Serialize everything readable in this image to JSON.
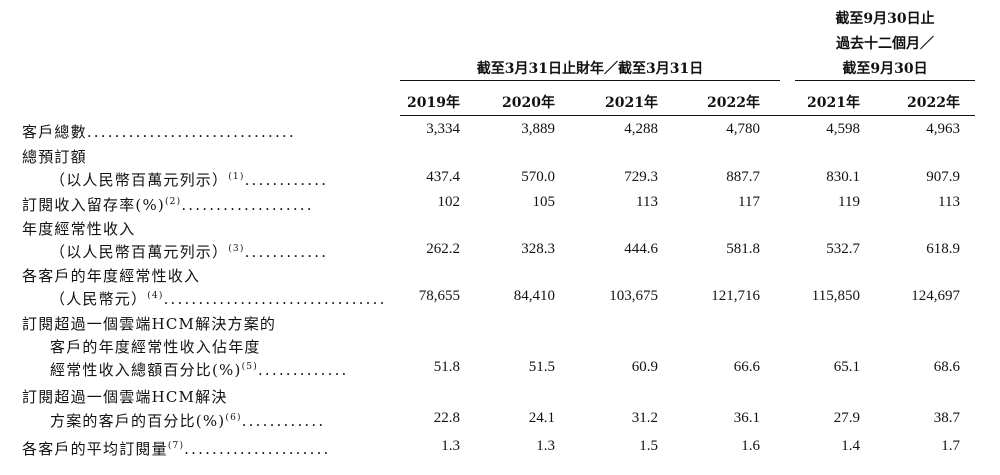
{
  "header": {
    "group_left": "截至3月31日止財年／截至3月31日",
    "group_right_line1": "截至9月30日止",
    "group_right_line2": "過去十二個月／",
    "group_right_line3": "截至9月30日"
  },
  "years": [
    "2019年",
    "2020年",
    "2021年",
    "2022年",
    "2021年",
    "2022年"
  ],
  "rows": [
    {
      "label_lines": [
        "客戶總數"
      ],
      "sup": "",
      "values": [
        "3,334",
        "3,889",
        "4,288",
        "4,780",
        "4,598",
        "4,963"
      ]
    },
    {
      "label_lines": [
        "總預訂額",
        "（以人民幣百萬元列示）"
      ],
      "sup": "(1)",
      "values": [
        "437.4",
        "570.0",
        "729.3",
        "887.7",
        "830.1",
        "907.9"
      ]
    },
    {
      "label_lines": [
        "訂閱收入留存率(%)"
      ],
      "sup": "(2)",
      "values": [
        "102",
        "105",
        "113",
        "117",
        "119",
        "113"
      ]
    },
    {
      "label_lines": [
        "年度經常性收入",
        "（以人民幣百萬元列示）"
      ],
      "sup": "(3)",
      "values": [
        "262.2",
        "328.3",
        "444.6",
        "581.8",
        "532.7",
        "618.9"
      ]
    },
    {
      "label_lines": [
        "各客戶的年度經常性收入",
        "（人民幣元）"
      ],
      "sup": "(4)",
      "values": [
        "78,655",
        "84,410",
        "103,675",
        "121,716",
        "115,850",
        "124,697"
      ]
    },
    {
      "label_lines": [
        "訂閱超過一個雲端HCM解決方案的",
        "客戶的年度經常性收入佔年度",
        "經常性收入總額百分比(%)"
      ],
      "sup": "(5)",
      "values": [
        "51.8",
        "51.5",
        "60.9",
        "66.6",
        "65.1",
        "68.6"
      ]
    },
    {
      "label_lines": [
        "訂閱超過一個雲端HCM解決",
        "方案的客戶的百分比(%)"
      ],
      "sup": "(6)",
      "values": [
        "22.8",
        "24.1",
        "31.2",
        "36.1",
        "27.9",
        "38.7"
      ]
    },
    {
      "label_lines": [
        "各客戶的平均訂閱量"
      ],
      "sup": "(7)",
      "values": [
        "1.3",
        "1.3",
        "1.5",
        "1.6",
        "1.4",
        "1.7"
      ]
    }
  ]
}
